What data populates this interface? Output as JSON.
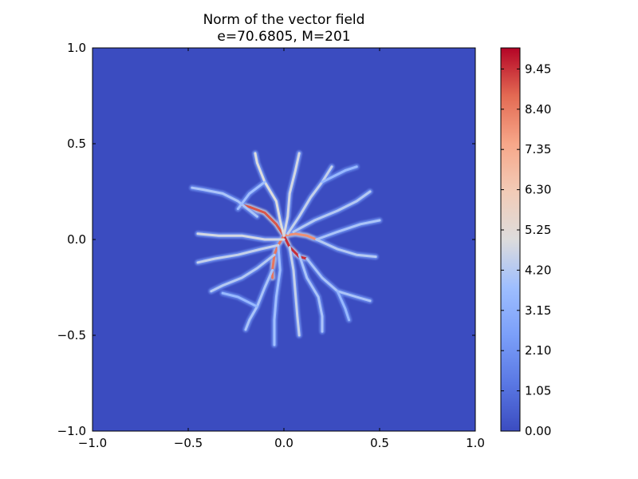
{
  "chart_data": {
    "type": "heatmap",
    "title": "Norm of the vector field",
    "subtitle": "e=70.6805, M=201",
    "xlabel": "",
    "ylabel": "",
    "xlim": [
      -1.0,
      1.0
    ],
    "ylim": [
      -1.0,
      1.0
    ],
    "x_tick_labels": [
      "−1.0",
      "−0.5",
      "0.0",
      "0.5",
      "1.0"
    ],
    "y_tick_labels": [
      "−1.0",
      "−0.5",
      "0.0",
      "0.5",
      "1.0"
    ],
    "colorbar": {
      "min": 0.0,
      "max": 10.0,
      "colormap": "coolwarm",
      "tick_values": [
        0.0,
        1.05,
        2.1,
        3.15,
        4.2,
        5.25,
        6.3,
        7.35,
        8.4,
        9.45
      ],
      "tick_labels": [
        "0.00",
        "1.05",
        "2.10",
        "3.15",
        "4.20",
        "5.25",
        "6.30",
        "7.35",
        "8.40",
        "9.45"
      ]
    },
    "background_value": 0.0,
    "grid": false,
    "branches": [
      {
        "value": 9.0,
        "points": [
          [
            0.0,
            0.02
          ],
          [
            -0.04,
            0.08
          ],
          [
            -0.1,
            0.14
          ],
          [
            -0.18,
            0.17
          ],
          [
            -0.22,
            0.18
          ]
        ]
      },
      {
        "value": 9.5,
        "points": [
          [
            0.0,
            0.02
          ],
          [
            0.03,
            -0.04
          ],
          [
            0.08,
            -0.09
          ],
          [
            0.12,
            -0.1
          ]
        ]
      },
      {
        "value": 8.5,
        "points": [
          [
            0.0,
            0.02
          ],
          [
            -0.03,
            -0.03
          ],
          [
            -0.05,
            -0.08
          ],
          [
            -0.06,
            -0.16
          ],
          [
            -0.06,
            -0.2
          ]
        ]
      },
      {
        "value": 8.0,
        "points": [
          [
            0.0,
            0.02
          ],
          [
            0.06,
            0.03
          ],
          [
            0.12,
            0.02
          ],
          [
            0.17,
            0.0
          ]
        ]
      },
      {
        "value": 5.0,
        "points": [
          [
            0.0,
            0.02
          ],
          [
            -0.02,
            0.1
          ],
          [
            -0.04,
            0.2
          ],
          [
            -0.1,
            0.3
          ],
          [
            -0.14,
            0.4
          ],
          [
            -0.15,
            0.45
          ]
        ]
      },
      {
        "value": 4.8,
        "points": [
          [
            0.0,
            0.02
          ],
          [
            0.02,
            0.12
          ],
          [
            0.03,
            0.24
          ],
          [
            0.06,
            0.36
          ],
          [
            0.08,
            0.45
          ]
        ]
      },
      {
        "value": 4.5,
        "points": [
          [
            0.02,
            0.03
          ],
          [
            0.08,
            0.12
          ],
          [
            0.14,
            0.22
          ],
          [
            0.2,
            0.3
          ],
          [
            0.25,
            0.38
          ]
        ]
      },
      {
        "value": 4.2,
        "points": [
          [
            0.05,
            0.04
          ],
          [
            0.16,
            0.1
          ],
          [
            0.28,
            0.15
          ],
          [
            0.38,
            0.2
          ],
          [
            0.45,
            0.25
          ]
        ]
      },
      {
        "value": 4.0,
        "points": [
          [
            0.17,
            0.0
          ],
          [
            0.28,
            0.04
          ],
          [
            0.4,
            0.08
          ],
          [
            0.5,
            0.1
          ]
        ]
      },
      {
        "value": 4.2,
        "points": [
          [
            0.17,
            0.0
          ],
          [
            0.28,
            -0.05
          ],
          [
            0.38,
            -0.08
          ],
          [
            0.48,
            -0.09
          ]
        ]
      },
      {
        "value": 4.0,
        "points": [
          [
            0.12,
            -0.1
          ],
          [
            0.2,
            -0.2
          ],
          [
            0.28,
            -0.27
          ],
          [
            0.38,
            -0.3
          ],
          [
            0.45,
            -0.32
          ]
        ]
      },
      {
        "value": 4.0,
        "points": [
          [
            0.08,
            -0.08
          ],
          [
            0.12,
            -0.2
          ],
          [
            0.18,
            -0.3
          ],
          [
            0.2,
            -0.4
          ],
          [
            0.2,
            -0.48
          ]
        ]
      },
      {
        "value": 4.5,
        "points": [
          [
            0.03,
            -0.04
          ],
          [
            0.05,
            -0.16
          ],
          [
            0.06,
            -0.28
          ],
          [
            0.07,
            -0.4
          ],
          [
            0.08,
            -0.5
          ]
        ]
      },
      {
        "value": 3.8,
        "points": [
          [
            -0.03,
            -0.03
          ],
          [
            -0.02,
            -0.16
          ],
          [
            -0.04,
            -0.3
          ],
          [
            -0.05,
            -0.42
          ],
          [
            -0.05,
            -0.55
          ]
        ]
      },
      {
        "value": 4.0,
        "points": [
          [
            -0.06,
            -0.16
          ],
          [
            -0.1,
            -0.25
          ],
          [
            -0.14,
            -0.35
          ],
          [
            -0.18,
            -0.42
          ],
          [
            -0.2,
            -0.47
          ]
        ]
      },
      {
        "value": 4.2,
        "points": [
          [
            -0.05,
            -0.08
          ],
          [
            -0.14,
            -0.15
          ],
          [
            -0.22,
            -0.2
          ],
          [
            -0.32,
            -0.24
          ],
          [
            -0.38,
            -0.27
          ]
        ]
      },
      {
        "value": 4.5,
        "points": [
          [
            -0.03,
            -0.03
          ],
          [
            -0.12,
            -0.05
          ],
          [
            -0.24,
            -0.08
          ],
          [
            -0.36,
            -0.1
          ],
          [
            -0.45,
            -0.12
          ]
        ]
      },
      {
        "value": 4.8,
        "points": [
          [
            0.0,
            0.0
          ],
          [
            -0.1,
            0.0
          ],
          [
            -0.22,
            0.02
          ],
          [
            -0.34,
            0.02
          ],
          [
            -0.45,
            0.03
          ]
        ]
      },
      {
        "value": 4.0,
        "points": [
          [
            -0.14,
            0.12
          ],
          [
            -0.24,
            0.2
          ],
          [
            -0.32,
            0.24
          ],
          [
            -0.42,
            0.26
          ],
          [
            -0.48,
            0.27
          ]
        ]
      },
      {
        "value": 3.8,
        "points": [
          [
            -0.1,
            0.3
          ],
          [
            -0.18,
            0.24
          ],
          [
            -0.24,
            0.16
          ]
        ]
      },
      {
        "value": 3.5,
        "points": [
          [
            0.2,
            0.3
          ],
          [
            0.32,
            0.36
          ],
          [
            0.38,
            0.38
          ]
        ]
      },
      {
        "value": 3.5,
        "points": [
          [
            -0.14,
            -0.35
          ],
          [
            -0.24,
            -0.3
          ],
          [
            -0.32,
            -0.28
          ]
        ]
      },
      {
        "value": 3.5,
        "points": [
          [
            0.28,
            -0.27
          ],
          [
            0.32,
            -0.36
          ],
          [
            0.34,
            -0.42
          ]
        ]
      }
    ]
  }
}
